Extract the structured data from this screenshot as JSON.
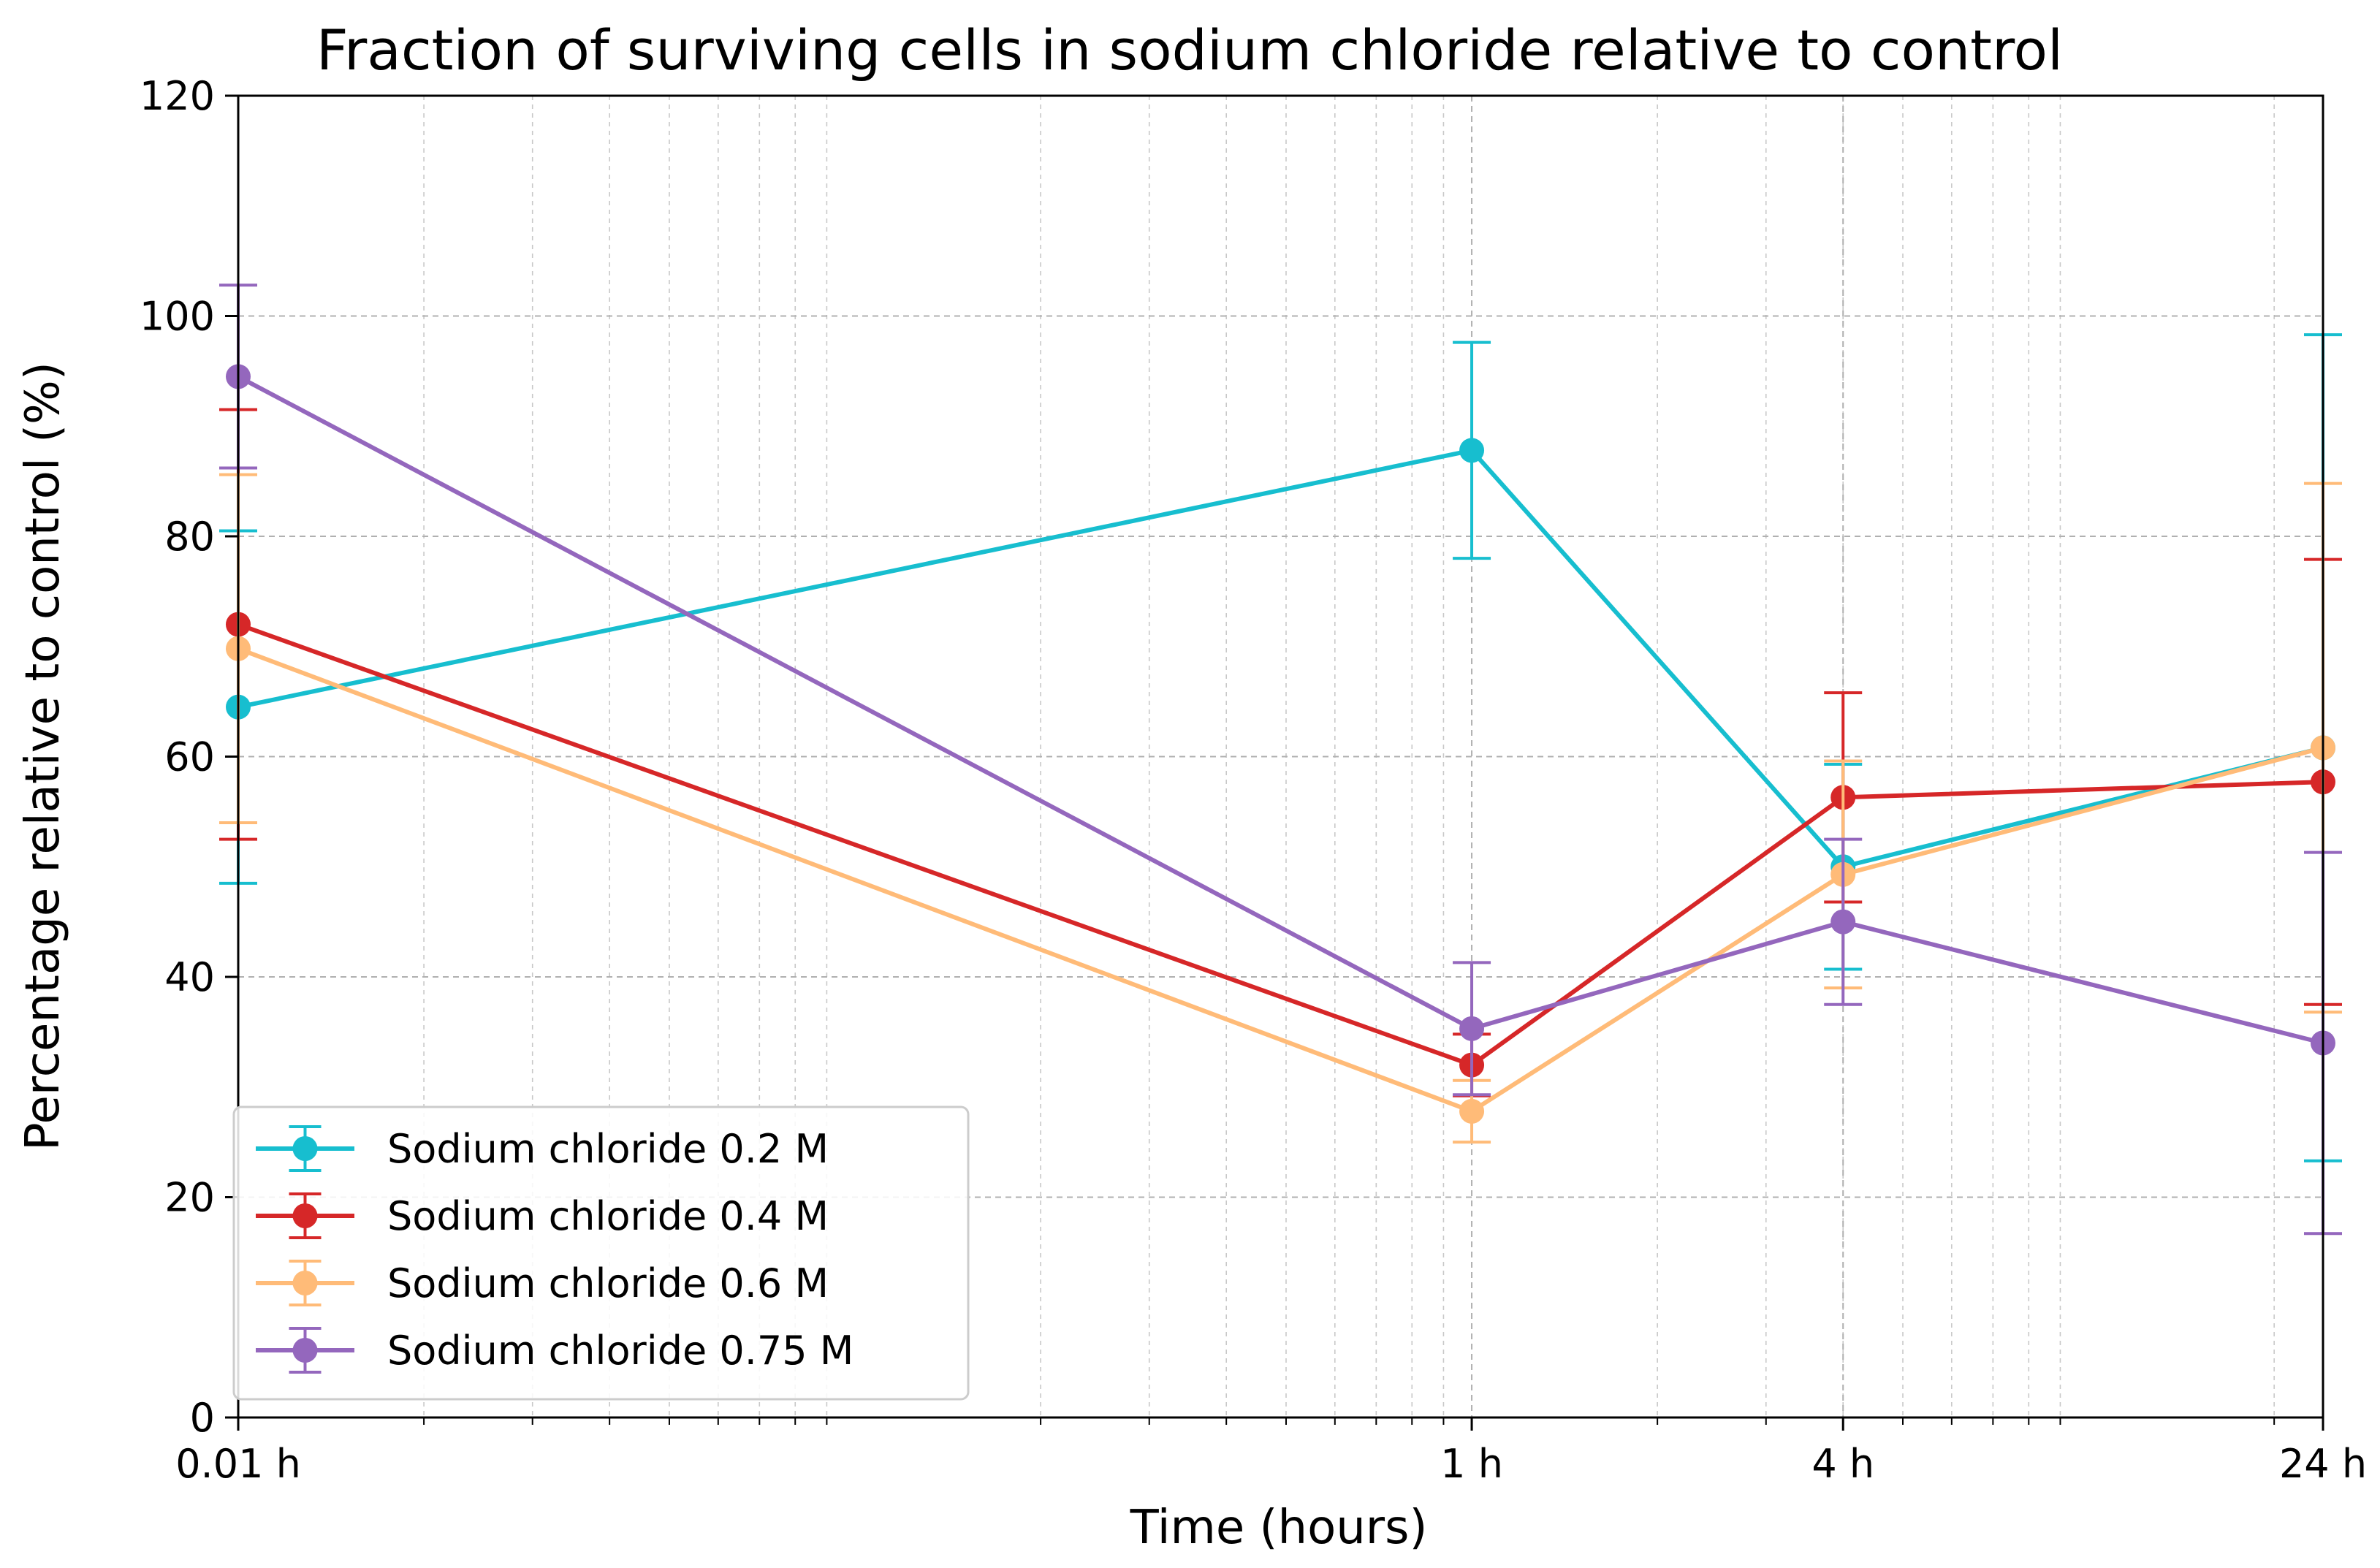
{
  "chart_data": {
    "type": "line",
    "title": "Fraction of surviving cells in sodium chloride relative to control",
    "xlabel": "Time (hours)",
    "ylabel": "Percentage relative to control (%)",
    "xscale": "log",
    "x": [
      0.01,
      1,
      4,
      24
    ],
    "x_tick_labels": [
      "0.01 h",
      "1 h",
      "4 h",
      "24 h"
    ],
    "xlim": [
      0.01,
      24
    ],
    "ylim": [
      0,
      120
    ],
    "y_ticks": [
      0,
      20,
      40,
      60,
      80,
      100,
      120
    ],
    "grid": true,
    "legend_position": "lower-left",
    "series": [
      {
        "name": "Sodium chloride 0.2 M",
        "color": "#17becf",
        "values": [
          64.5,
          87.8,
          50.0,
          60.8
        ],
        "errors": [
          16.0,
          9.8,
          9.3,
          37.5
        ]
      },
      {
        "name": "Sodium chloride 0.4 M",
        "color": "#d62728",
        "values": [
          72.0,
          32.0,
          56.3,
          57.7
        ],
        "errors": [
          19.5,
          2.8,
          9.5,
          20.2
        ]
      },
      {
        "name": "Sodium chloride 0.6 M",
        "color": "#ffbb78",
        "values": [
          69.8,
          27.8,
          49.3,
          60.8
        ],
        "errors": [
          15.8,
          2.8,
          10.3,
          24.0
        ]
      },
      {
        "name": "Sodium chloride 0.75 M",
        "color": "#9467bd",
        "values": [
          94.5,
          35.3,
          45.0,
          34.0
        ],
        "errors": [
          8.3,
          6.0,
          7.5,
          17.3
        ]
      }
    ]
  }
}
